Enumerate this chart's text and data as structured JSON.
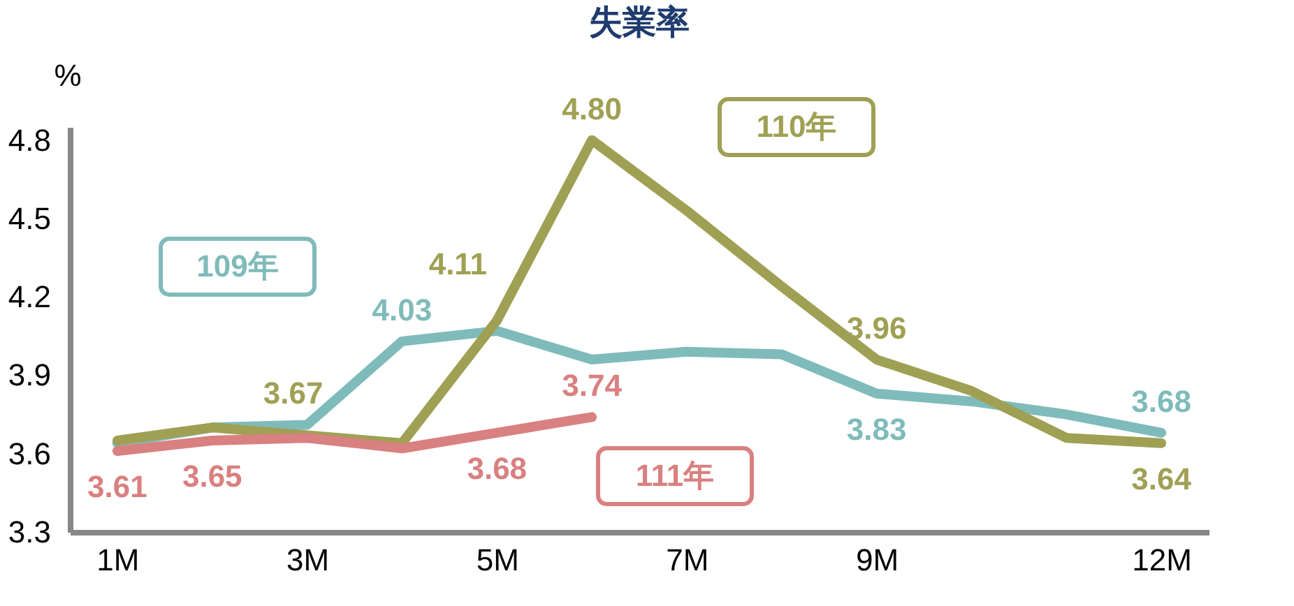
{
  "chart_data": {
    "type": "line",
    "title": "失業率",
    "ylabel": "%",
    "categories": [
      "1M",
      null,
      "3M",
      null,
      "5M",
      null,
      "7M",
      null,
      "9M",
      null,
      null,
      "12M"
    ],
    "ylim": [
      3.3,
      4.85
    ],
    "yticks": [
      3.3,
      3.6,
      3.9,
      4.2,
      4.5,
      4.8
    ],
    "grid": false,
    "legend": false,
    "marker": "none",
    "line_style": "solid",
    "series": [
      {
        "name": "109年",
        "color": "#7fbbba",
        "values": [
          3.64,
          3.7,
          3.71,
          4.03,
          4.07,
          3.96,
          3.99,
          3.98,
          3.83,
          3.8,
          3.75,
          3.68
        ],
        "value_labels": [
          null,
          null,
          null,
          "4.03",
          null,
          null,
          null,
          null,
          "3.83",
          null,
          null,
          "3.68"
        ]
      },
      {
        "name": "110年",
        "color": "#a0a055",
        "values": [
          3.65,
          3.7,
          3.67,
          3.64,
          4.11,
          4.8,
          4.53,
          4.24,
          3.96,
          3.84,
          3.66,
          3.64
        ],
        "value_labels": [
          null,
          null,
          "3.67",
          null,
          "4.11",
          "4.80",
          null,
          null,
          "3.96",
          null,
          null,
          "3.64"
        ]
      },
      {
        "name": "111年",
        "color": "#d98080",
        "values": [
          3.61,
          3.65,
          3.66,
          3.62,
          3.68,
          3.74,
          null,
          null,
          null,
          null,
          null,
          null
        ],
        "value_labels": [
          "3.61",
          "3.65",
          null,
          null,
          "3.68",
          "3.74",
          null,
          null,
          null,
          null,
          null,
          null
        ]
      }
    ]
  }
}
